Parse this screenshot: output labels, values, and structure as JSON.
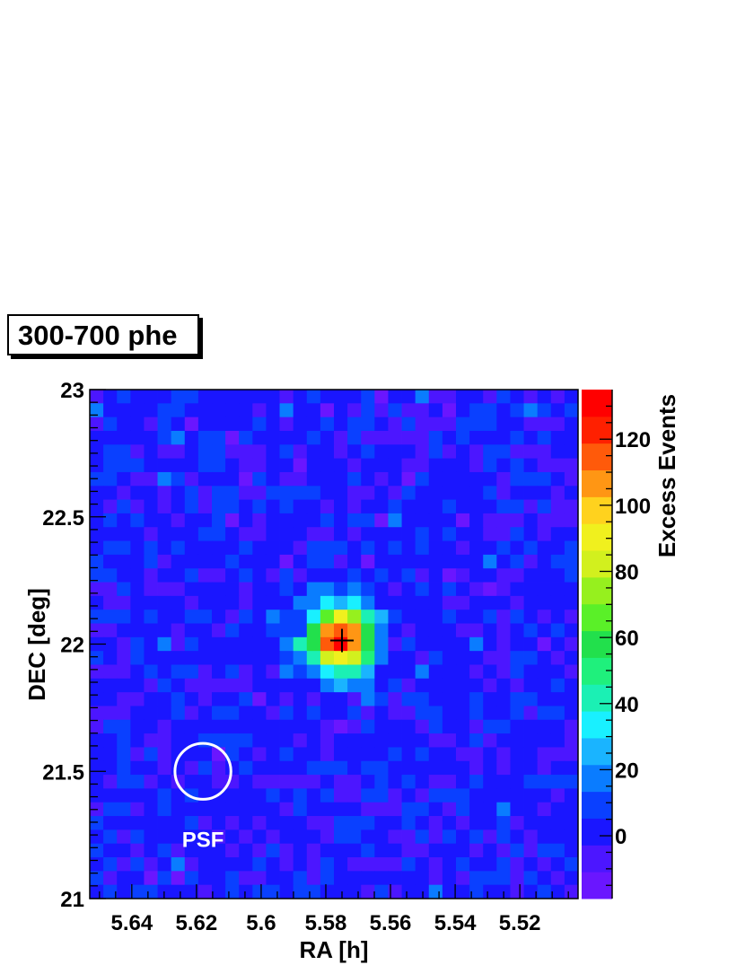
{
  "chart_data": {
    "type": "heatmap",
    "title": "300-700 phe",
    "xlabel": "RA [h]",
    "ylabel": "DEC [deg]",
    "zlabel": "Excess Events",
    "xlim": [
      5.653,
      5.502
    ],
    "ylim": [
      21.0,
      23.0
    ],
    "xticks": [
      "5.64",
      "5.62",
      "5.6",
      "5.58",
      "5.56",
      "5.54",
      "5.52"
    ],
    "xtick_values": [
      5.64,
      5.62,
      5.6,
      5.58,
      5.56,
      5.54,
      5.52
    ],
    "yticks": [
      "21",
      "21.5",
      "22",
      "22.5",
      "23"
    ],
    "ytick_values": [
      21.0,
      21.5,
      22.0,
      22.5,
      23.0
    ],
    "zlim": [
      -19,
      135
    ],
    "zticks": [
      "0",
      "20",
      "40",
      "60",
      "80",
      "100",
      "120"
    ],
    "ztick_values": [
      0,
      20,
      40,
      60,
      80,
      100,
      120
    ],
    "bins": [
      36,
      37
    ],
    "source": {
      "ra": 5.575,
      "dec": 22.014,
      "label": ""
    },
    "blob": {
      "ra": 5.5755,
      "dec": 22.02,
      "peak": 133,
      "sigma_ra": 0.0068,
      "sigma_dec": 0.09
    },
    "psf": {
      "ra": 5.618,
      "dec": 21.5,
      "radius_deg": 0.11,
      "label": "PSF"
    },
    "palette": [
      "#6a16ff",
      "#4c16ff",
      "#1a16ff",
      "#0a40ff",
      "#0a7cff",
      "#1ab4ff",
      "#19f0ff",
      "#1bf0b4",
      "#1ff07c",
      "#22e04c",
      "#5af028",
      "#96f01e",
      "#d2f01e",
      "#f0f01e",
      "#ffd21e",
      "#ff9614",
      "#ff5a0a",
      "#ff2000",
      "#ff0000"
    ]
  }
}
